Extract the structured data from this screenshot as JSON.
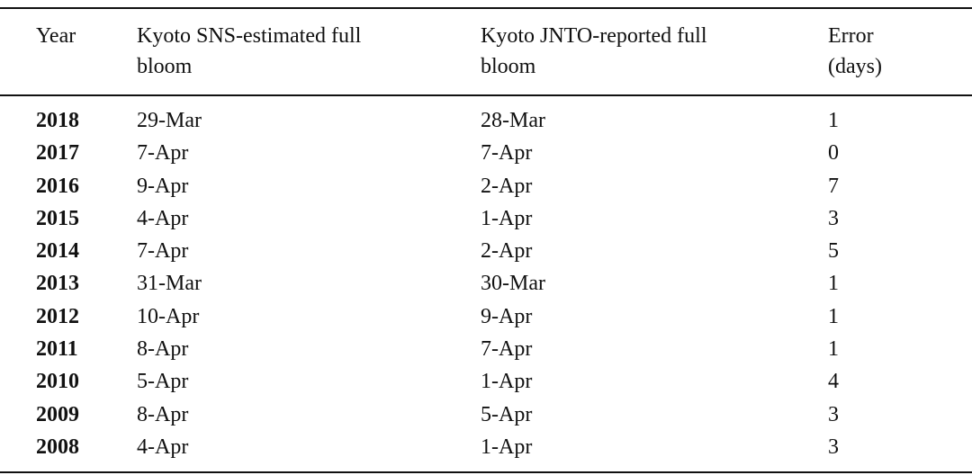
{
  "table": {
    "header": [
      "Year",
      "Kyoto SNS-estimated full bloom",
      "Kyoto JNTO-reported full bloom",
      "Error (days)"
    ],
    "rows": [
      [
        2018,
        "29-Mar",
        "28-Mar",
        1
      ],
      [
        2017,
        "7-Apr",
        "7-Apr",
        0
      ],
      [
        2016,
        "9-Apr",
        "2-Apr",
        7
      ],
      [
        2015,
        "4-Apr",
        "1-Apr",
        3
      ],
      [
        2014,
        "7-Apr",
        "2-Apr",
        5
      ],
      [
        2013,
        "31-Mar",
        "30-Mar",
        1
      ],
      [
        2012,
        "10-Apr",
        "9-Apr",
        1
      ],
      [
        2011,
        "8-Apr",
        "7-Apr",
        1
      ],
      [
        2010,
        "5-Apr",
        "1-Apr",
        4
      ],
      [
        2009,
        "8-Apr",
        "5-Apr",
        3
      ],
      [
        2008,
        "4-Apr",
        "1-Apr",
        3
      ]
    ]
  }
}
